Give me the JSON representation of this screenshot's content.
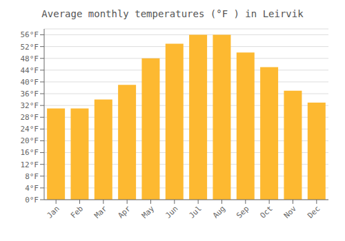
{
  "chart_data": {
    "type": "bar",
    "title": "Average monthly temperatures (°F ) in Leirvik",
    "categories": [
      "Jan",
      "Feb",
      "Mar",
      "Apr",
      "May",
      "Jun",
      "Jul",
      "Aug",
      "Sep",
      "Oct",
      "Nov",
      "Dec"
    ],
    "values": [
      31,
      31,
      34,
      39,
      48,
      53,
      56,
      56,
      50,
      45,
      37,
      33
    ],
    "color": "#FDB931",
    "ylim": [
      0,
      58
    ],
    "yticks": [
      {
        "value": 0,
        "label": "0°F"
      },
      {
        "value": 4,
        "label": "4°F"
      },
      {
        "value": 8,
        "label": "8°F"
      },
      {
        "value": 12,
        "label": "12°F"
      },
      {
        "value": 16,
        "label": "16°F"
      },
      {
        "value": 20,
        "label": "20°F"
      },
      {
        "value": 24,
        "label": "24°F"
      },
      {
        "value": 28,
        "label": "28°F"
      },
      {
        "value": 32,
        "label": "32°F"
      },
      {
        "value": 36,
        "label": "36°F"
      },
      {
        "value": 40,
        "label": "40°F"
      },
      {
        "value": 44,
        "label": "44°F"
      },
      {
        "value": 48,
        "label": "48°F"
      },
      {
        "value": 52,
        "label": "52°F"
      },
      {
        "value": 56,
        "label": "56°F"
      }
    ],
    "grid": true
  }
}
